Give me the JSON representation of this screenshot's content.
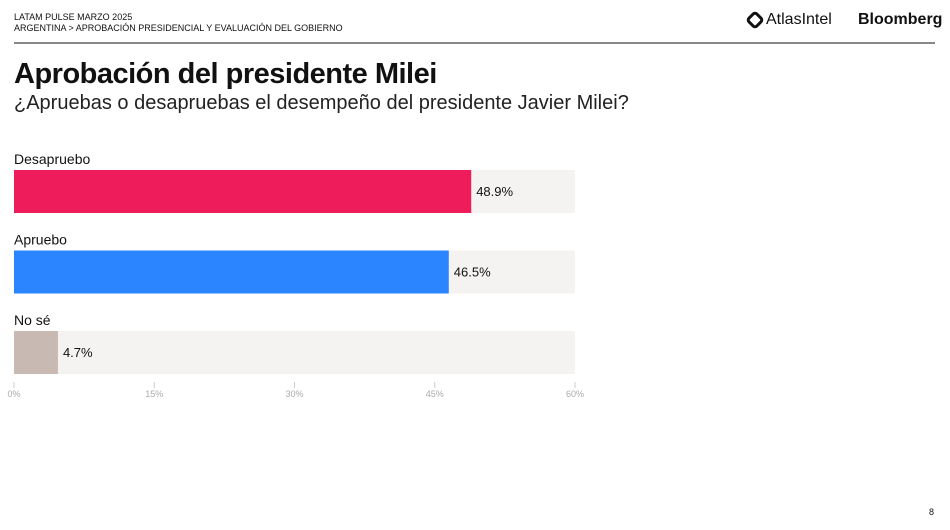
{
  "header": {
    "line1": "LATAM PULSE MARZO 2025",
    "line2": "ARGENTINA > APROBACIÓN PRESIDENCIAL Y EVALUACIÓN DEL GOBIERNO",
    "logos": [
      "AtlasIntel",
      "Bloomberg"
    ]
  },
  "title": "Aprobación del presidente Milei",
  "subtitle": "¿Apruebas o desapruebas el desempeño del presidente Javier Milei?",
  "page_number": "8",
  "chart_data": {
    "type": "bar",
    "orientation": "horizontal",
    "categories": [
      "Desapruebo",
      "Apruebo",
      "No sé"
    ],
    "values": [
      48.9,
      46.5,
      4.7
    ],
    "value_labels": [
      "48.9%",
      "46.5%",
      "4.7%"
    ],
    "colors": [
      "#EE1C5B",
      "#2A85FF",
      "#C8BAB2"
    ],
    "track_color": "#F4F3F1",
    "xlim": [
      0,
      60
    ],
    "xticks": [
      "0%",
      "15%",
      "30%",
      "45%",
      "60%"
    ],
    "xtick_values": [
      0,
      15,
      30,
      45,
      60
    ],
    "grid": false
  }
}
